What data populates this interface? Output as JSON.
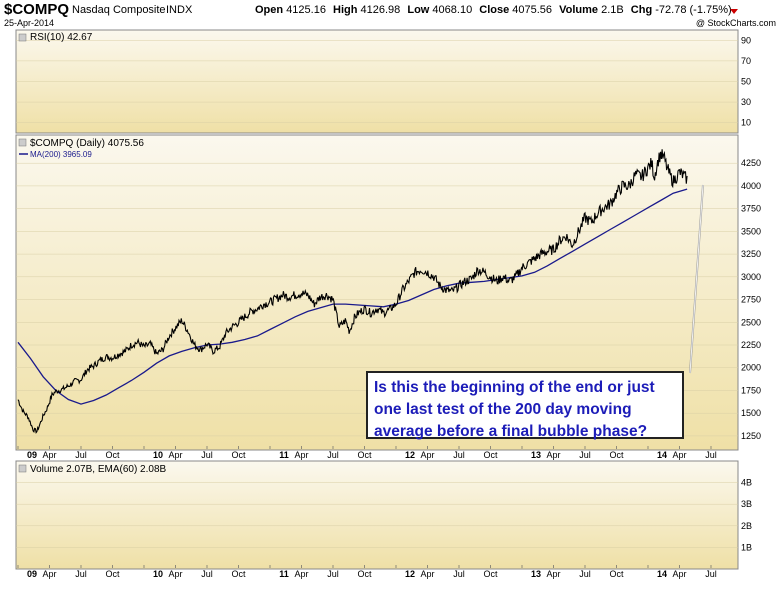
{
  "header": {
    "symbol": "$COMPQ",
    "name": "Nasdaq Composite",
    "exchange": "INDX",
    "date": "25-Apr-2014",
    "copyright": "@ StockCharts.com",
    "open_label": "Open",
    "open": "4125.16",
    "high_label": "High",
    "high": "4126.98",
    "low_label": "Low",
    "low": "4068.10",
    "close_label": "Close",
    "close": "4075.56",
    "volume_label": "Volume",
    "volume": "2.1B",
    "chg_label": "Chg",
    "chg": "-72.78 (-1.75%)"
  },
  "colors": {
    "panel_top": "#fbf8ee",
    "panel_bottom": "#efe0a6",
    "price": "#000000",
    "ma": "#1a1a8c",
    "annotation_text": "#1c1cb8",
    "chg_arrow": "#cc0000"
  },
  "rsi_panel": {
    "legend": "RSI(10) 42.67",
    "ticks": [
      "90",
      "70",
      "50",
      "30",
      "10"
    ]
  },
  "price_panel": {
    "legend": "$COMPQ (Daily) 4075.56",
    "ma_legend": "MA(200) 3965.09",
    "ticks": [
      "4250",
      "4000",
      "3750",
      "3500",
      "3250",
      "3000",
      "2750",
      "2500",
      "2250",
      "2000",
      "1750",
      "1500",
      "1250"
    ]
  },
  "volume_panel": {
    "legend": "Volume 2.07B, EMA(60) 2.08B",
    "ticks": [
      "4B",
      "3B",
      "2B",
      "1B"
    ]
  },
  "x_axis_labels": [
    {
      "t": 0,
      "label": "09",
      "year": true
    },
    {
      "t": 0.25,
      "label": "Apr"
    },
    {
      "t": 0.5,
      "label": "Jul"
    },
    {
      "t": 0.75,
      "label": "Oct"
    },
    {
      "t": 1.0,
      "label": "10",
      "year": true
    },
    {
      "t": 1.25,
      "label": "Apr"
    },
    {
      "t": 1.5,
      "label": "Jul"
    },
    {
      "t": 1.75,
      "label": "Oct"
    },
    {
      "t": 2.0,
      "label": "11",
      "year": true
    },
    {
      "t": 2.25,
      "label": "Apr"
    },
    {
      "t": 2.5,
      "label": "Jul"
    },
    {
      "t": 2.75,
      "label": "Oct"
    },
    {
      "t": 3.0,
      "label": "12",
      "year": true
    },
    {
      "t": 3.25,
      "label": "Apr"
    },
    {
      "t": 3.5,
      "label": "Jul"
    },
    {
      "t": 3.75,
      "label": "Oct"
    },
    {
      "t": 4.0,
      "label": "13",
      "year": true
    },
    {
      "t": 4.25,
      "label": "Apr"
    },
    {
      "t": 4.5,
      "label": "Jul"
    },
    {
      "t": 4.75,
      "label": "Oct"
    },
    {
      "t": 5.0,
      "label": "14",
      "year": true
    },
    {
      "t": 5.25,
      "label": "Apr"
    },
    {
      "t": 5.5,
      "label": "Jul"
    }
  ],
  "annotation": {
    "line1": "Is this the beginning of the end or just",
    "line2": "one last test of the 200 day moving",
    "line3": "average before a final bubble phase?"
  },
  "chart_data": {
    "type": "line",
    "title": "$COMPQ Nasdaq Composite INDX",
    "x_unit": "years since Jan 2009",
    "ylim": [
      1150,
      4450
    ],
    "rsi_ylim": [
      0,
      100
    ],
    "volume_ylim_billions": [
      0,
      5
    ],
    "series": [
      {
        "name": "$COMPQ (Daily)",
        "x": [
          0.0,
          0.04,
          0.08,
          0.12,
          0.15,
          0.18,
          0.2,
          0.23,
          0.27,
          0.3,
          0.35,
          0.4,
          0.45,
          0.5,
          0.55,
          0.6,
          0.65,
          0.7,
          0.75,
          0.8,
          0.85,
          0.9,
          0.95,
          1.0,
          1.05,
          1.1,
          1.15,
          1.2,
          1.25,
          1.3,
          1.35,
          1.4,
          1.45,
          1.5,
          1.55,
          1.6,
          1.65,
          1.7,
          1.75,
          1.8,
          1.85,
          1.9,
          1.95,
          2.0,
          2.05,
          2.1,
          2.15,
          2.2,
          2.25,
          2.3,
          2.35,
          2.4,
          2.45,
          2.5,
          2.55,
          2.6,
          2.63,
          2.67,
          2.7,
          2.75,
          2.8,
          2.85,
          2.9,
          2.95,
          3.0,
          3.05,
          3.1,
          3.15,
          3.2,
          3.25,
          3.3,
          3.35,
          3.4,
          3.45,
          3.5,
          3.55,
          3.6,
          3.65,
          3.7,
          3.75,
          3.8,
          3.85,
          3.9,
          3.95,
          4.0,
          4.05,
          4.1,
          4.15,
          4.2,
          4.25,
          4.3,
          4.35,
          4.4,
          4.45,
          4.5,
          4.55,
          4.6,
          4.65,
          4.7,
          4.75,
          4.8,
          4.85,
          4.9,
          4.95,
          5.0,
          5.03,
          5.05,
          5.08,
          5.1,
          5.13,
          5.15,
          5.18,
          5.2,
          5.25,
          5.31
        ],
        "values": [
          1650,
          1520,
          1460,
          1320,
          1300,
          1400,
          1470,
          1550,
          1700,
          1740,
          1760,
          1800,
          1850,
          1870,
          1980,
          2020,
          2080,
          2120,
          2110,
          2150,
          2180,
          2250,
          2280,
          2230,
          2260,
          2150,
          2200,
          2350,
          2440,
          2520,
          2400,
          2250,
          2200,
          2260,
          2180,
          2230,
          2380,
          2450,
          2500,
          2560,
          2620,
          2650,
          2700,
          2720,
          2760,
          2800,
          2780,
          2800,
          2820,
          2800,
          2700,
          2780,
          2800,
          2750,
          2450,
          2520,
          2400,
          2550,
          2600,
          2650,
          2600,
          2650,
          2600,
          2640,
          2700,
          2850,
          2950,
          3050,
          3080,
          3050,
          3000,
          2900,
          2850,
          2840,
          2900,
          2950,
          2980,
          3080,
          3050,
          3000,
          2950,
          3000,
          2950,
          3000,
          3100,
          3150,
          3200,
          3250,
          3280,
          3300,
          3400,
          3450,
          3350,
          3500,
          3650,
          3600,
          3700,
          3760,
          3800,
          3920,
          4000,
          4000,
          4120,
          4100,
          4200,
          4250,
          4100,
          4280,
          4350,
          4300,
          4200,
          4100,
          4050,
          4150,
          4075
        ]
      },
      {
        "name": "MA(200)",
        "x": [
          0.0,
          0.1,
          0.2,
          0.3,
          0.4,
          0.5,
          0.6,
          0.7,
          0.8,
          0.9,
          1.0,
          1.1,
          1.2,
          1.3,
          1.4,
          1.5,
          1.6,
          1.7,
          1.8,
          1.9,
          2.0,
          2.1,
          2.2,
          2.3,
          2.4,
          2.5,
          2.6,
          2.7,
          2.8,
          2.9,
          3.0,
          3.1,
          3.2,
          3.3,
          3.4,
          3.5,
          3.6,
          3.7,
          3.8,
          3.9,
          4.0,
          4.1,
          4.2,
          4.3,
          4.4,
          4.5,
          4.6,
          4.7,
          4.8,
          4.9,
          5.0,
          5.1,
          5.2,
          5.31
        ],
        "values": [
          2280,
          2100,
          1900,
          1750,
          1650,
          1600,
          1640,
          1700,
          1780,
          1860,
          1950,
          2050,
          2130,
          2180,
          2220,
          2250,
          2260,
          2280,
          2310,
          2350,
          2420,
          2490,
          2560,
          2620,
          2660,
          2700,
          2700,
          2690,
          2680,
          2670,
          2700,
          2740,
          2800,
          2860,
          2900,
          2930,
          2940,
          2950,
          2970,
          2990,
          3010,
          3050,
          3120,
          3200,
          3280,
          3360,
          3440,
          3520,
          3600,
          3680,
          3760,
          3840,
          3920,
          3965
        ]
      }
    ]
  }
}
